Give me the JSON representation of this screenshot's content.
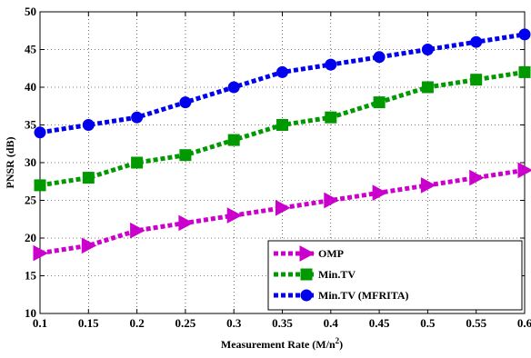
{
  "chart_data": {
    "type": "line",
    "title": "",
    "xlabel": "Measurement Rate (M/n",
    "xlabel_sup": "2",
    "xlabel_end": ")",
    "ylabel": "PNSR (dB)",
    "xlim": [
      0.1,
      0.6
    ],
    "ylim": [
      10,
      50
    ],
    "x_ticks": [
      "0.1",
      "0.15",
      "0.2",
      "0.25",
      "0.3",
      "0.35",
      "0.4",
      "0.45",
      "0.5",
      "0.55",
      "0.6"
    ],
    "y_ticks": [
      "10",
      "15",
      "20",
      "25",
      "30",
      "35",
      "40",
      "45",
      "50"
    ],
    "grid": true,
    "legend_position": "bottom-right",
    "x": [
      0.1,
      0.15,
      0.2,
      0.25,
      0.3,
      0.35,
      0.4,
      0.45,
      0.5,
      0.55,
      0.6
    ],
    "series": [
      {
        "name": "OMP",
        "color": "#cc00cc",
        "marker": "triangle-right",
        "values": [
          18,
          19,
          21,
          22,
          23,
          24,
          25,
          26,
          27,
          28,
          29
        ]
      },
      {
        "name": "Min.TV",
        "color": "#009900",
        "marker": "square",
        "values": [
          27,
          28,
          30,
          31,
          33,
          35,
          36,
          38,
          40,
          41,
          42
        ]
      },
      {
        "name": "Min.TV (MFRITA)",
        "color": "#0000ee",
        "marker": "circle",
        "values": [
          34,
          35,
          36,
          38,
          40,
          42,
          43,
          44,
          45,
          46,
          47
        ]
      }
    ]
  }
}
